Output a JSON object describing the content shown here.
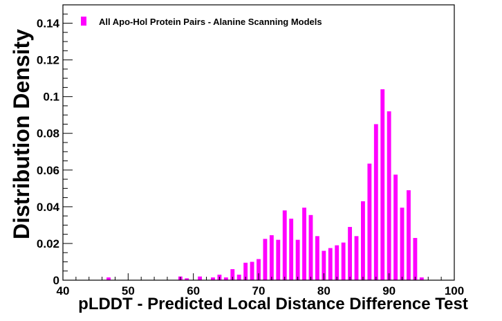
{
  "chart_data": {
    "type": "bar",
    "xlabel": "pLDDT - Predicted Local Distance Difference Test",
    "ylabel": "Distribution Density",
    "xlim": [
      40,
      100
    ],
    "ylim": [
      0,
      0.15
    ],
    "x_ticks": [
      "40",
      "50",
      "60",
      "70",
      "80",
      "90",
      "100"
    ],
    "y_ticks": [
      "0",
      "0.02",
      "0.04",
      "0.06",
      "0.08",
      "0.1",
      "0.12",
      "0.14"
    ],
    "legend_position": "top-left",
    "series": [
      {
        "name": "All Apo-Hol Protein Pairs - Alanine Scanning Models",
        "color": "#ff00ff",
        "bin_width": 1,
        "x": [
          47,
          58,
          59,
          61,
          63,
          64,
          65,
          66,
          67,
          68,
          69,
          70,
          71,
          72,
          73,
          74,
          75,
          76,
          77,
          78,
          79,
          80,
          81,
          82,
          83,
          84,
          85,
          86,
          87,
          88,
          89,
          90,
          91,
          92,
          93,
          94,
          95
        ],
        "values": [
          0.0015,
          0.002,
          0.001,
          0.002,
          0.0015,
          0.003,
          0.0015,
          0.006,
          0.003,
          0.0095,
          0.01,
          0.0115,
          0.0225,
          0.0245,
          0.022,
          0.038,
          0.0335,
          0.022,
          0.0395,
          0.0355,
          0.024,
          0.016,
          0.0175,
          0.019,
          0.0205,
          0.029,
          0.024,
          0.043,
          0.0635,
          0.085,
          0.104,
          0.092,
          0.0575,
          0.0395,
          0.049,
          0.023,
          0.0015
        ]
      }
    ]
  }
}
